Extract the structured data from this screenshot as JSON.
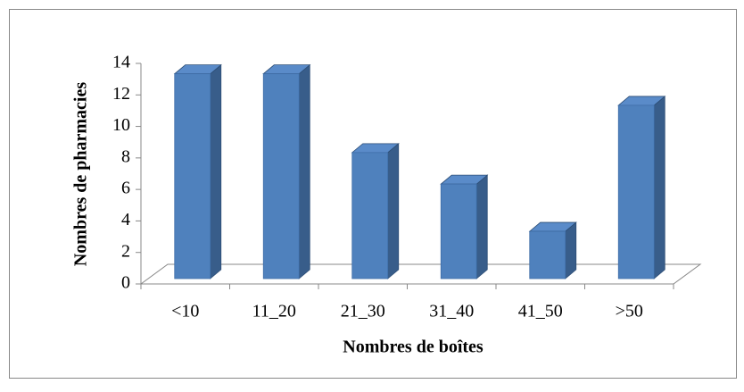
{
  "chart_data": {
    "type": "bar3d",
    "categories": [
      "<10",
      "11_20",
      "21_30",
      "31_40",
      "41_50",
      ">50"
    ],
    "values": [
      13,
      13,
      8,
      6,
      3,
      11
    ],
    "color": "#4f81bd",
    "xlabel": "Nombres de boîtes",
    "ylabel": "Nombres de pharmacies",
    "ylim": [
      0,
      14
    ],
    "yticks": [
      0,
      2,
      4,
      6,
      8,
      10,
      12,
      14
    ],
    "grid": false
  }
}
